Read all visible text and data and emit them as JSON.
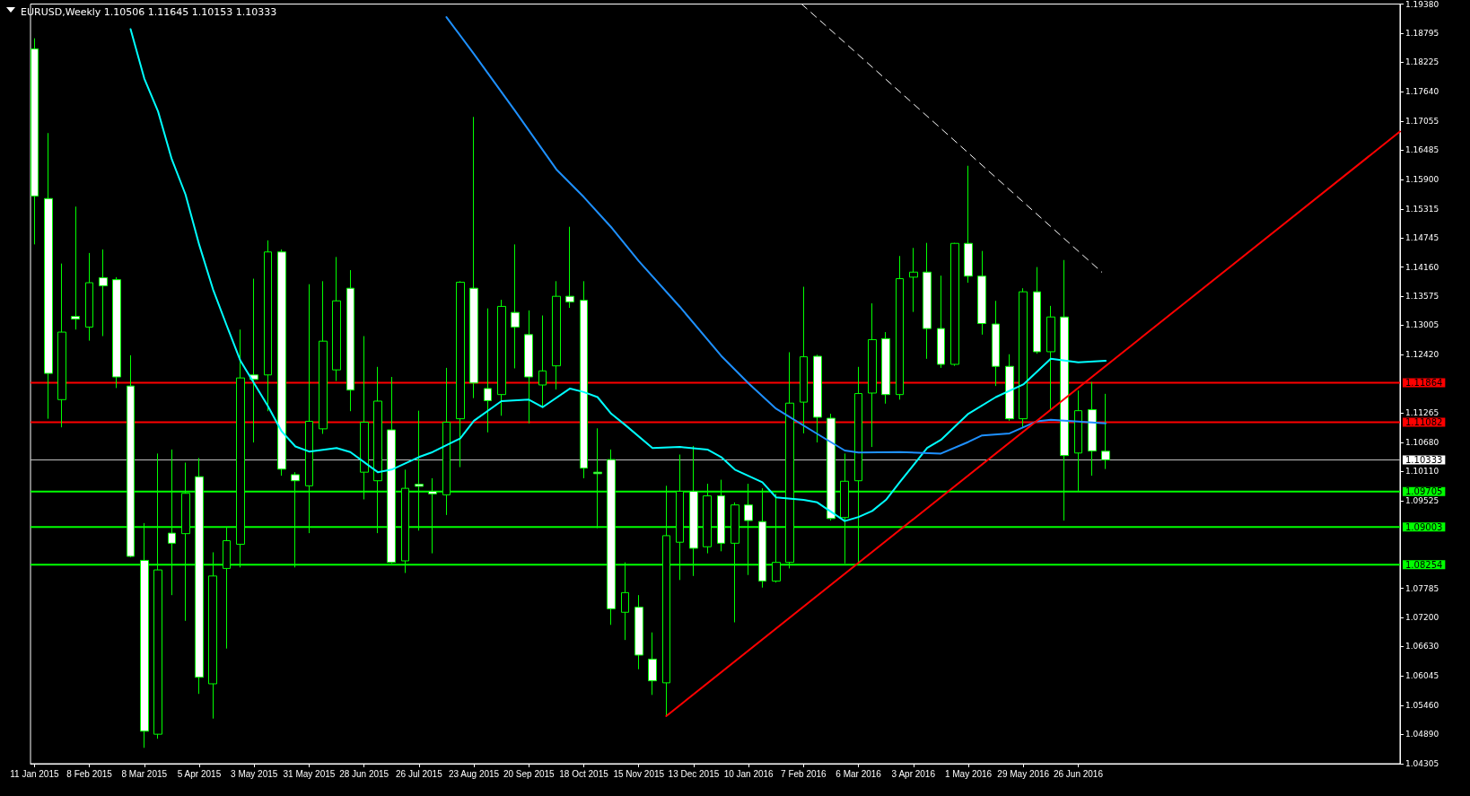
{
  "chart_data": {
    "type": "candlestick",
    "title": "EURUSD,Weekly 1.10506 1.11645 1.10153 1.10333",
    "x": [
      "2015-01-11",
      "2015-01-18",
      "2015-01-25",
      "2015-02-01",
      "2015-02-08",
      "2015-02-15",
      "2015-02-22",
      "2015-03-01",
      "2015-03-08",
      "2015-03-15",
      "2015-03-22",
      "2015-03-29",
      "2015-04-05",
      "2015-04-12",
      "2015-04-19",
      "2015-04-26",
      "2015-05-03",
      "2015-05-10",
      "2015-05-17",
      "2015-05-24",
      "2015-05-31",
      "2015-06-07",
      "2015-06-14",
      "2015-06-21",
      "2015-06-28",
      "2015-07-05",
      "2015-07-12",
      "2015-07-19",
      "2015-07-26",
      "2015-08-02",
      "2015-08-09",
      "2015-08-16",
      "2015-08-23",
      "2015-08-30",
      "2015-09-06",
      "2015-09-13",
      "2015-09-20",
      "2015-09-27",
      "2015-10-04",
      "2015-10-11",
      "2015-10-18",
      "2015-10-25",
      "2015-11-01",
      "2015-11-08",
      "2015-11-15",
      "2015-11-22",
      "2015-11-29",
      "2015-12-06",
      "2015-12-13",
      "2015-12-20",
      "2015-12-27",
      "2016-01-03",
      "2016-01-10",
      "2016-01-17",
      "2016-01-24",
      "2016-01-31",
      "2016-02-07",
      "2016-02-14",
      "2016-02-21",
      "2016-02-28",
      "2016-03-06",
      "2016-03-13",
      "2016-03-20",
      "2016-03-27",
      "2016-04-03",
      "2016-04-10",
      "2016-04-17",
      "2016-04-24",
      "2016-05-01",
      "2016-05-08",
      "2016-05-15",
      "2016-05-22",
      "2016-05-29",
      "2016-06-05",
      "2016-06-12",
      "2016-06-19",
      "2016-06-26",
      "2016-07-03",
      "2016-07-10"
    ],
    "ohlc": [
      [
        1.1849,
        1.187,
        1.1461,
        1.1557
      ],
      [
        1.1552,
        1.1682,
        1.1115,
        1.1205
      ],
      [
        1.1153,
        1.1423,
        1.1098,
        1.1287
      ],
      [
        1.1318,
        1.1536,
        1.1292,
        1.1313
      ],
      [
        1.1297,
        1.1444,
        1.127,
        1.1385
      ],
      [
        1.1395,
        1.1451,
        1.1279,
        1.1379
      ],
      [
        1.1391,
        1.1396,
        1.1176,
        1.1198
      ],
      [
        1.118,
        1.1241,
        1.084,
        1.0842
      ],
      [
        1.0834,
        1.0908,
        1.0462,
        1.0495
      ],
      [
        1.0489,
        1.1046,
        1.048,
        1.0815
      ],
      [
        1.0888,
        1.1054,
        1.0765,
        1.0868
      ],
      [
        1.0887,
        1.1028,
        1.0714,
        1.0967
      ],
      [
        1.1,
        1.1037,
        1.0569,
        1.0602
      ],
      [
        1.0589,
        1.085,
        1.052,
        1.0803
      ],
      [
        1.0818,
        1.09,
        1.0659,
        1.0873
      ],
      [
        1.0866,
        1.1292,
        1.082,
        1.1196
      ],
      [
        1.1202,
        1.1393,
        1.1068,
        1.1193
      ],
      [
        1.1202,
        1.1469,
        1.113,
        1.1446
      ],
      [
        1.1446,
        1.1451,
        1.1002,
        1.1015
      ],
      [
        1.1004,
        1.1009,
        1.082,
        1.0992
      ],
      [
        1.0982,
        1.1382,
        1.0888,
        1.111
      ],
      [
        1.1095,
        1.1388,
        1.1085,
        1.1269
      ],
      [
        1.1212,
        1.1436,
        1.119,
        1.1349
      ],
      [
        1.1374,
        1.141,
        1.113,
        1.1172
      ],
      [
        1.1009,
        1.1279,
        1.0955,
        1.1108
      ],
      [
        1.0992,
        1.1218,
        1.0888,
        1.115
      ],
      [
        1.1093,
        1.1198,
        1.0828,
        1.083
      ],
      [
        1.0833,
        1.1014,
        1.0809,
        1.0977
      ],
      [
        1.0985,
        1.1131,
        1.0893,
        1.0981
      ],
      [
        1.0971,
        1.0997,
        1.0848,
        1.0966
      ],
      [
        1.0964,
        1.1216,
        1.0924,
        1.1108
      ],
      [
        1.1115,
        1.1388,
        1.1019,
        1.1386
      ],
      [
        1.1374,
        1.1714,
        1.1156,
        1.1186
      ],
      [
        1.1175,
        1.1334,
        1.1088,
        1.1151
      ],
      [
        1.1163,
        1.1351,
        1.1121,
        1.1338
      ],
      [
        1.1326,
        1.1461,
        1.1215,
        1.1297
      ],
      [
        1.1282,
        1.133,
        1.1106,
        1.1198
      ],
      [
        1.1182,
        1.132,
        1.1138,
        1.121
      ],
      [
        1.122,
        1.1388,
        1.1173,
        1.1358
      ],
      [
        1.1358,
        1.1496,
        1.1335,
        1.1347
      ],
      [
        1.135,
        1.1388,
        1.0997,
        1.1017
      ],
      [
        1.1009,
        1.1096,
        1.0898,
        1.1006
      ],
      [
        1.1034,
        1.1054,
        1.0706,
        1.0738
      ],
      [
        1.0731,
        1.083,
        1.0676,
        1.077
      ],
      [
        1.0741,
        1.0765,
        1.0618,
        1.0646
      ],
      [
        1.0638,
        1.0691,
        1.0567,
        1.0595
      ],
      [
        1.0591,
        1.0982,
        1.0525,
        1.0883
      ],
      [
        1.087,
        1.1044,
        1.0795,
        1.0971
      ],
      [
        1.0971,
        1.1061,
        1.0803,
        1.0858
      ],
      [
        1.0861,
        1.0986,
        1.0848,
        1.0962
      ],
      [
        1.0962,
        1.0994,
        1.0852,
        1.0868
      ],
      [
        1.0868,
        1.0949,
        1.0711,
        1.0944
      ],
      [
        1.0944,
        1.0986,
        1.0805,
        1.0913
      ],
      [
        1.0911,
        1.0977,
        1.078,
        1.0793
      ],
      [
        1.0793,
        1.0966,
        1.079,
        1.083
      ],
      [
        1.083,
        1.1247,
        1.0818,
        1.1146
      ],
      [
        1.1148,
        1.1377,
        1.1086,
        1.1238
      ],
      [
        1.1239,
        1.1242,
        1.1068,
        1.1118
      ],
      [
        1.1116,
        1.1125,
        1.0913,
        1.0917
      ],
      [
        1.0919,
        1.1046,
        1.0828,
        1.0991
      ],
      [
        1.0992,
        1.1218,
        1.0828,
        1.1165
      ],
      [
        1.1166,
        1.1344,
        1.1059,
        1.1272
      ],
      [
        1.1274,
        1.1287,
        1.1145,
        1.1163
      ],
      [
        1.1163,
        1.1438,
        1.1153,
        1.1393
      ],
      [
        1.1396,
        1.1454,
        1.1327,
        1.1406
      ],
      [
        1.1406,
        1.1464,
        1.1234,
        1.1294
      ],
      [
        1.1294,
        1.1399,
        1.1216,
        1.1223
      ],
      [
        1.1223,
        1.1464,
        1.122,
        1.1463
      ],
      [
        1.1463,
        1.1617,
        1.1385,
        1.1398
      ],
      [
        1.1398,
        1.1448,
        1.1282,
        1.1304
      ],
      [
        1.1303,
        1.1349,
        1.118,
        1.1219
      ],
      [
        1.1219,
        1.1243,
        1.1111,
        1.1115
      ],
      [
        1.1115,
        1.1374,
        1.1098,
        1.1367
      ],
      [
        1.1367,
        1.1416,
        1.1244,
        1.1248
      ],
      [
        1.1248,
        1.1339,
        1.1131,
        1.1317
      ],
      [
        1.1317,
        1.143,
        1.0913,
        1.1042
      ],
      [
        1.1047,
        1.1171,
        1.0972,
        1.1131
      ],
      [
        1.1133,
        1.1188,
        1.1002,
        1.1051
      ],
      [
        1.10506,
        1.11645,
        1.10153,
        1.10333
      ]
    ],
    "xlim": [
      "2015-01-09",
      "2016-12-07"
    ],
    "xticks": [
      {
        "value": "2015-01-11",
        "label": "11 Jan 2015"
      },
      {
        "value": "2015-02-08",
        "label": "8 Feb 2015"
      },
      {
        "value": "2015-03-08",
        "label": "8 Mar 2015"
      },
      {
        "value": "2015-04-05",
        "label": "5 Apr 2015"
      },
      {
        "value": "2015-05-03",
        "label": "3 May 2015"
      },
      {
        "value": "2015-05-31",
        "label": "31 May 2015"
      },
      {
        "value": "2015-06-28",
        "label": "28 Jun 2015"
      },
      {
        "value": "2015-07-26",
        "label": "26 Jul 2015"
      },
      {
        "value": "2015-08-23",
        "label": "23 Aug 2015"
      },
      {
        "value": "2015-09-20",
        "label": "20 Sep 2015"
      },
      {
        "value": "2015-10-18",
        "label": "18 Oct 2015"
      },
      {
        "value": "2015-11-15",
        "label": "15 Nov 2015"
      },
      {
        "value": "2015-12-13",
        "label": "13 Dec 2015"
      },
      {
        "value": "2016-01-10",
        "label": "10 Jan 2016"
      },
      {
        "value": "2016-02-07",
        "label": "7 Feb 2016"
      },
      {
        "value": "2016-03-06",
        "label": "6 Mar 2016"
      },
      {
        "value": "2016-04-03",
        "label": "3 Apr 2016"
      },
      {
        "value": "2016-05-01",
        "label": "1 May 2016"
      },
      {
        "value": "2016-05-29",
        "label": "29 May 2016"
      },
      {
        "value": "2016-06-26",
        "label": "26 Jun 2016"
      }
    ],
    "ylim": [
      1.04305,
      1.1938
    ],
    "yticks": [
      {
        "value": 1.1938,
        "label": "1.19380"
      },
      1.18795,
      1.18225,
      {
        "value": 1.1764,
        "label": "1.17640"
      },
      1.17055,
      1.16485,
      {
        "value": 1.159,
        "label": "1.15900"
      },
      1.15315,
      1.14745,
      {
        "value": 1.1416,
        "label": "1.14160"
      },
      1.13575,
      1.13005,
      {
        "value": 1.1242,
        "label": "1.12420"
      },
      1.11265,
      {
        "value": 1.1068,
        "label": "1.10680"
      },
      {
        "value": 1.1011,
        "label": "1.10110"
      },
      1.09525,
      1.07785,
      {
        "value": 1.072,
        "label": "1.07200"
      },
      {
        "value": 1.0663,
        "label": "1.06630"
      },
      1.06045,
      {
        "value": 1.0546,
        "label": "1.05460"
      },
      {
        "value": 1.0489,
        "label": "1.04890"
      },
      1.04305
    ],
    "grid": false,
    "series": [
      {
        "type": "line",
        "color": "#00ffff",
        "x": [
          "2015-03-01",
          "2015-03-08",
          "2015-03-15",
          "2015-03-22",
          "2015-03-29",
          "2015-04-05",
          "2015-04-12",
          "2015-04-19",
          "2015-04-26",
          "2015-05-03",
          "2015-05-10",
          "2015-05-17",
          "2015-05-24",
          "2015-05-31",
          "2015-06-14",
          "2015-06-21",
          "2015-07-05",
          "2015-07-12",
          "2015-07-26",
          "2015-08-02",
          "2015-08-16",
          "2015-08-23",
          "2015-09-06",
          "2015-09-20",
          "2015-09-27",
          "2015-10-11",
          "2015-10-18",
          "2015-10-25",
          "2015-11-01",
          "2015-11-08",
          "2015-11-22",
          "2015-12-06",
          "2015-12-20",
          "2015-12-27",
          "2016-01-03",
          "2016-01-17",
          "2016-01-24",
          "2016-02-07",
          "2016-02-14",
          "2016-02-28",
          "2016-03-06",
          "2016-03-13",
          "2016-03-20",
          "2016-03-27",
          "2016-04-10",
          "2016-04-17",
          "2016-05-01",
          "2016-05-15",
          "2016-05-29",
          "2016-06-12",
          "2016-06-26",
          "2016-07-10"
        ],
        "values": [
          1.1888,
          1.179,
          1.1725,
          1.163,
          1.156,
          1.146,
          1.1372,
          1.13,
          1.123,
          1.1185,
          1.114,
          1.109,
          1.106,
          1.105,
          1.1057,
          1.1049,
          1.1009,
          1.1014,
          1.1039,
          1.1049,
          1.1076,
          1.1111,
          1.115,
          1.1153,
          1.1138,
          1.1175,
          1.1168,
          1.1158,
          1.1125,
          1.1103,
          1.1057,
          1.1059,
          1.1054,
          1.1039,
          1.1014,
          1.0989,
          1.0959,
          1.0954,
          1.0949,
          1.0912,
          1.092,
          1.0932,
          1.0954,
          1.0989,
          1.1057,
          1.1073,
          1.1125,
          1.1158,
          1.1183,
          1.1234,
          1.1227,
          1.123
        ]
      },
      {
        "type": "line",
        "color": "#1e90ff",
        "x": [
          "2015-08-09",
          "2015-08-23",
          "2015-09-13",
          "2015-10-04",
          "2015-10-18",
          "2015-11-01",
          "2015-11-15",
          "2015-12-06",
          "2015-12-27",
          "2016-01-10",
          "2016-01-24",
          "2016-02-14",
          "2016-02-28",
          "2016-03-06",
          "2016-03-27",
          "2016-04-17",
          "2016-05-01",
          "2016-05-08",
          "2016-05-22",
          "2016-06-05",
          "2016-06-12",
          "2016-07-10"
        ],
        "values": [
          1.1912,
          1.1839,
          1.1726,
          1.161,
          1.1555,
          1.1495,
          1.1428,
          1.1337,
          1.124,
          1.1185,
          1.1135,
          1.1085,
          1.1052,
          1.1048,
          1.1049,
          1.1046,
          1.1069,
          1.1082,
          1.1086,
          1.111,
          1.1113,
          1.1106
        ]
      },
      {
        "type": "line",
        "color": "#ff0000",
        "x": [
          "2015-11-29",
          "2016-12-07"
        ],
        "values": [
          1.0525,
          1.1685
        ]
      },
      {
        "type": "line",
        "color": "#ffffff",
        "line_style": "dashed",
        "x": [
          "2016-02-06",
          "2016-07-08"
        ],
        "values": [
          1.1938,
          1.1406
        ]
      }
    ],
    "ref_lines": [
      {
        "axis": "y",
        "value": 1.11864,
        "label": "1.11864",
        "color": "#ff0000"
      },
      {
        "axis": "y",
        "value": 1.11082,
        "label": "1.11082",
        "color": "#ff0000"
      },
      {
        "axis": "y",
        "value": 1.10333,
        "label": "1.10333",
        "color": "#c0c0c0"
      },
      {
        "axis": "y",
        "value": 1.09705,
        "label": "1.09705",
        "color": "#00ff00"
      },
      {
        "axis": "y",
        "value": 1.09003,
        "label": "1.09003",
        "color": "#00ff00"
      },
      {
        "axis": "y",
        "value": 1.08254,
        "label": "1.08254",
        "color": "#00ff00"
      }
    ]
  }
}
